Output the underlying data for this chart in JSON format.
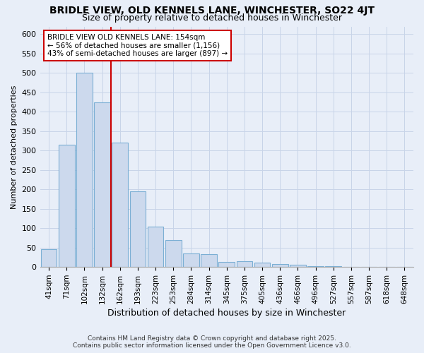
{
  "title": "BRIDLE VIEW, OLD KENNELS LANE, WINCHESTER, SO22 4JT",
  "subtitle": "Size of property relative to detached houses in Winchester",
  "xlabel": "Distribution of detached houses by size in Winchester",
  "ylabel": "Number of detached properties",
  "categories": [
    "41sqm",
    "71sqm",
    "102sqm",
    "132sqm",
    "162sqm",
    "193sqm",
    "223sqm",
    "253sqm",
    "284sqm",
    "314sqm",
    "345sqm",
    "375sqm",
    "405sqm",
    "436sqm",
    "466sqm",
    "496sqm",
    "527sqm",
    "557sqm",
    "587sqm",
    "618sqm",
    "648sqm"
  ],
  "values": [
    46,
    315,
    500,
    425,
    320,
    195,
    105,
    70,
    35,
    33,
    14,
    15,
    12,
    8,
    5,
    2,
    2,
    1,
    0,
    0,
    1
  ],
  "bar_color": "#ccd9ed",
  "bar_edge_color": "#7bafd4",
  "grid_color": "#c8d4e8",
  "bg_color": "#e8eef8",
  "vline_x_index": 4,
  "vline_color": "#cc0000",
  "annotation_box_color": "#ffffff",
  "annotation_border_color": "#cc0000",
  "marker_label_line1": "BRIDLE VIEW OLD KENNELS LANE: 154sqm",
  "marker_label_line2": "← 56% of detached houses are smaller (1,156)",
  "marker_label_line3": "43% of semi-detached houses are larger (897) →",
  "ylim": [
    0,
    620
  ],
  "yticks": [
    0,
    50,
    100,
    150,
    200,
    250,
    300,
    350,
    400,
    450,
    500,
    550,
    600
  ],
  "footer1": "Contains HM Land Registry data © Crown copyright and database right 2025.",
  "footer2": "Contains public sector information licensed under the Open Government Licence v3.0."
}
